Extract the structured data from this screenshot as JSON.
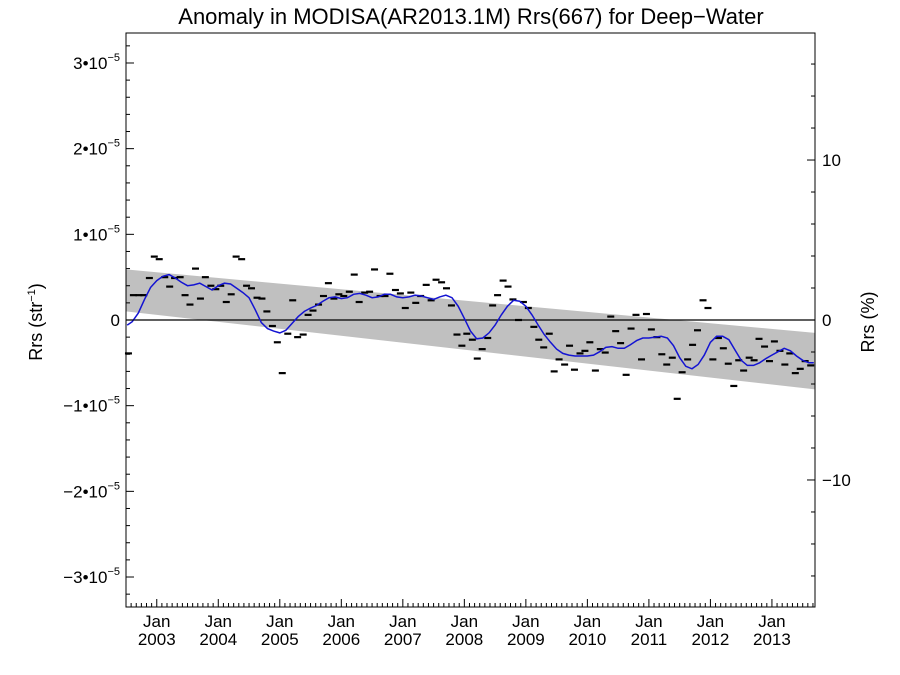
{
  "chart_data": {
    "type": "scatter",
    "title": "Anomaly in MODISA(AR2013.1M) Rrs(667) for Deep−Water",
    "ylabel_left": {
      "main": "Rrs (str",
      "sup": "−1",
      "close": ")"
    },
    "ylabel_right": "Rrs (%)",
    "xlabel": "",
    "xlim": [
      2002.5,
      2013.7
    ],
    "ylim": [
      -3.35e-05,
      3.35e-05
    ],
    "y2lim": [
      -17.94,
      17.94
    ],
    "grid": false,
    "legend": "none",
    "colors": {
      "smooth_line": "#1414d2",
      "trend_band": "#c0c0c0",
      "points": "#000000"
    },
    "left_ticks": [
      {
        "value": -3e-05,
        "mant": "−3•1",
        "pre": "0",
        "exp": "−5"
      },
      {
        "value": -2e-05,
        "mant": "−2•1",
        "pre": "0",
        "exp": "−5"
      },
      {
        "value": -1e-05,
        "mant": "−1•1",
        "pre": "0",
        "exp": "−5"
      },
      {
        "value": 0,
        "mant": "0",
        "pre": "",
        "exp": ""
      },
      {
        "value": 1e-05,
        "mant": "1•1",
        "pre": "0",
        "exp": "−5"
      },
      {
        "value": 2e-05,
        "mant": "2•1",
        "pre": "0",
        "exp": "−5"
      },
      {
        "value": 3e-05,
        "mant": "3•1",
        "pre": "0",
        "exp": "−5"
      }
    ],
    "right_ticks": [
      {
        "value": -10,
        "label": "−10"
      },
      {
        "value": 0,
        "label": "0"
      },
      {
        "value": 10,
        "label": "10"
      }
    ],
    "x_ticks": [
      {
        "value": 2003.0,
        "month": "Jan",
        "year": "2003"
      },
      {
        "value": 2004.0,
        "month": "Jan",
        "year": "2004"
      },
      {
        "value": 2005.0,
        "month": "Jan",
        "year": "2005"
      },
      {
        "value": 2006.0,
        "month": "Jan",
        "year": "2006"
      },
      {
        "value": 2007.0,
        "month": "Jan",
        "year": "2007"
      },
      {
        "value": 2008.0,
        "month": "Jan",
        "year": "2008"
      },
      {
        "value": 2009.0,
        "month": "Jan",
        "year": "2009"
      },
      {
        "value": 2010.0,
        "month": "Jan",
        "year": "2010"
      },
      {
        "value": 2011.0,
        "month": "Jan",
        "year": "2011"
      },
      {
        "value": 2012.0,
        "month": "Jan",
        "year": "2012"
      },
      {
        "value": 2013.0,
        "month": "Jan",
        "year": "2013"
      }
    ],
    "trend_band": {
      "x": [
        2002.5,
        2013.7
      ],
      "upper": [
        5.9e-06,
        -1.5e-06
      ],
      "lower": [
        1e-06,
        -8.1e-06
      ]
    },
    "zero_line": 0,
    "points": {
      "x": [
        2002.54,
        2002.62,
        2002.71,
        2002.79,
        2002.88,
        2002.96,
        2003.04,
        2003.13,
        2003.21,
        2003.29,
        2003.38,
        2003.46,
        2003.54,
        2003.63,
        2003.71,
        2003.79,
        2003.88,
        2003.96,
        2004.04,
        2004.13,
        2004.21,
        2004.29,
        2004.38,
        2004.46,
        2004.54,
        2004.63,
        2004.71,
        2004.79,
        2004.88,
        2004.96,
        2005.04,
        2005.13,
        2005.21,
        2005.29,
        2005.38,
        2005.46,
        2005.54,
        2005.63,
        2005.71,
        2005.79,
        2005.88,
        2005.96,
        2006.04,
        2006.13,
        2006.21,
        2006.29,
        2006.38,
        2006.46,
        2006.54,
        2006.63,
        2006.71,
        2006.79,
        2006.88,
        2006.96,
        2007.04,
        2007.13,
        2007.21,
        2007.29,
        2007.38,
        2007.46,
        2007.54,
        2007.63,
        2007.71,
        2007.79,
        2007.88,
        2007.96,
        2008.04,
        2008.13,
        2008.21,
        2008.29,
        2008.38,
        2008.46,
        2008.54,
        2008.63,
        2008.71,
        2008.79,
        2008.88,
        2008.96,
        2009.04,
        2009.13,
        2009.21,
        2009.29,
        2009.38,
        2009.46,
        2009.54,
        2009.63,
        2009.71,
        2009.79,
        2009.88,
        2009.96,
        2010.04,
        2010.13,
        2010.21,
        2010.29,
        2010.38,
        2010.46,
        2010.54,
        2010.63,
        2010.71,
        2010.79,
        2010.88,
        2010.96,
        2011.04,
        2011.13,
        2011.21,
        2011.29,
        2011.38,
        2011.46,
        2011.54,
        2011.63,
        2011.71,
        2011.79,
        2011.88,
        2011.96,
        2012.04,
        2012.13,
        2012.21,
        2012.29,
        2012.38,
        2012.46,
        2012.54,
        2012.63,
        2012.71,
        2012.79,
        2012.88,
        2012.96,
        2013.04,
        2013.13,
        2013.21,
        2013.29,
        2013.38,
        2013.46,
        2013.54,
        2013.63
      ],
      "y": [
        -3.9e-06,
        2.9e-06,
        2.9e-06,
        2.9e-06,
        4.9e-06,
        7.4e-06,
        7.1e-06,
        5e-06,
        3.9e-06,
        4.9e-06,
        5e-06,
        2.9e-06,
        1.8e-06,
        6e-06,
        2.5e-06,
        5e-06,
        4e-06,
        3.6e-06,
        4e-06,
        2.1e-06,
        3e-06,
        7.4e-06,
        7.1e-06,
        4e-06,
        3.7e-06,
        2.6e-06,
        2.5e-06,
        1e-06,
        -7e-07,
        -2.6e-06,
        -6.2e-06,
        -1.6e-06,
        2.3e-06,
        -2e-06,
        -1.7e-06,
        6e-07,
        1.1e-06,
        1.8e-06,
        2.8e-06,
        4.3e-06,
        2.5e-06,
        3e-06,
        2.8e-06,
        3.3e-06,
        5.3e-06,
        2.1e-06,
        3.2e-06,
        3.3e-06,
        5.9e-06,
        2.8e-06,
        2.8e-06,
        5.4e-06,
        3.5e-06,
        3.1e-06,
        1.4e-06,
        3.2e-06,
        2e-06,
        2.8e-06,
        4.1e-06,
        2.3e-06,
        4.7e-06,
        4.4e-06,
        3.7e-06,
        1.7e-06,
        -1.7e-06,
        -3e-06,
        -1.6e-06,
        -2.3e-06,
        -4.5e-06,
        -3.4e-06,
        -2.1e-06,
        1.7e-06,
        2.9e-06,
        4.6e-06,
        3.9e-06,
        2.4e-06,
        0.0,
        2.1e-06,
        1.4e-06,
        -8e-07,
        -2.3e-06,
        -3.2e-06,
        -1.6e-06,
        -6e-06,
        -4.6e-06,
        -5.2e-06,
        -3e-06,
        -5.8e-06,
        -3.9e-06,
        -3.6e-06,
        -2.6e-06,
        -5.9e-06,
        -3.4e-06,
        -3.8e-06,
        4e-07,
        -1.3e-06,
        -2.7e-06,
        -6.4e-06,
        -1e-06,
        6e-07,
        -4.6e-06,
        7e-07,
        -1.1e-06,
        -2e-06,
        -4e-06,
        -5.2e-06,
        -4.4e-06,
        -9.2e-06,
        -6.1e-06,
        -4.6e-06,
        -2.9e-06,
        -1.2e-06,
        2.3e-06,
        1.4e-06,
        -4.6e-06,
        -2.1e-06,
        -3.3e-06,
        -5.1e-06,
        -7.7e-06,
        -4.7e-06,
        -5.9e-06,
        -4.4e-06,
        -4.7e-06,
        -2.2e-06,
        -3.1e-06,
        -4.8e-06,
        -2.5e-06,
        -3.6e-06,
        -5.2e-06,
        -3.9e-06,
        -6.2e-06,
        -5.7e-06,
        -4.8e-06,
        -5.3e-06
      ]
    },
    "smooth_line": {
      "x": [
        2002.52,
        2002.6,
        2002.7,
        2002.8,
        2002.9,
        2003.0,
        2003.1,
        2003.2,
        2003.3,
        2003.4,
        2003.5,
        2003.6,
        2003.7,
        2003.8,
        2003.9,
        2004.0,
        2004.1,
        2004.2,
        2004.3,
        2004.4,
        2004.5,
        2004.6,
        2004.7,
        2004.8,
        2004.9,
        2005.0,
        2005.1,
        2005.2,
        2005.3,
        2005.4,
        2005.5,
        2005.6,
        2005.7,
        2005.8,
        2005.9,
        2006.0,
        2006.1,
        2006.2,
        2006.3,
        2006.4,
        2006.5,
        2006.6,
        2006.7,
        2006.8,
        2006.9,
        2007.0,
        2007.1,
        2007.2,
        2007.3,
        2007.4,
        2007.5,
        2007.6,
        2007.7,
        2007.8,
        2007.9,
        2008.0,
        2008.1,
        2008.2,
        2008.3,
        2008.4,
        2008.5,
        2008.6,
        2008.7,
        2008.8,
        2008.9,
        2009.0,
        2009.1,
        2009.2,
        2009.3,
        2009.4,
        2009.5,
        2009.6,
        2009.7,
        2009.8,
        2009.9,
        2010.0,
        2010.1,
        2010.2,
        2010.3,
        2010.4,
        2010.5,
        2010.6,
        2010.7,
        2010.8,
        2010.9,
        2011.0,
        2011.1,
        2011.2,
        2011.3,
        2011.4,
        2011.5,
        2011.6,
        2011.7,
        2011.8,
        2011.9,
        2012.0,
        2012.1,
        2012.2,
        2012.3,
        2012.4,
        2012.5,
        2012.6,
        2012.7,
        2012.8,
        2012.9,
        2013.0,
        2013.1,
        2013.2,
        2013.3,
        2013.4,
        2013.5,
        2013.6,
        2013.68
      ],
      "y": [
        -6e-07,
        -2e-07,
        8e-07,
        2.4e-06,
        3.8e-06,
        4.6e-06,
        5.1e-06,
        5.3e-06,
        4.9e-06,
        4.4e-06,
        4e-06,
        4.1e-06,
        4.3e-06,
        3.9e-06,
        3.5e-06,
        4e-06,
        4.3e-06,
        4.2e-06,
        3.7e-06,
        3.2e-06,
        2.6e-06,
        1.2e-06,
        -3e-07,
        -1e-06,
        -1.3e-06,
        -1.5e-06,
        -1.2e-06,
        -4e-07,
        4e-07,
        1e-06,
        1.4e-06,
        1.7e-06,
        2.2e-06,
        2.6e-06,
        2.7e-06,
        2.5e-06,
        2.6e-06,
        3e-06,
        3.1e-06,
        2.9e-06,
        2.6e-06,
        2.7e-06,
        3e-06,
        3e-06,
        2.7e-06,
        2.6e-06,
        2.7e-06,
        2.9e-06,
        2.8e-06,
        2.6e-06,
        2.4e-06,
        2.7e-06,
        2.9e-06,
        2.6e-06,
        1.6e-06,
        2e-07,
        -1.3e-06,
        -2.2e-06,
        -2.1e-06,
        -1.5e-06,
        -6e-07,
        6e-07,
        1.6e-06,
        2.3e-06,
        2.2e-06,
        1.6e-06,
        6e-07,
        -6e-07,
        -1.7e-06,
        -2.6e-06,
        -3.4e-06,
        -3.9e-06,
        -4.1e-06,
        -4.2e-06,
        -4.2e-06,
        -4.2e-06,
        -4.1e-06,
        -3.7e-06,
        -3.2e-06,
        -3.1e-06,
        -3.3e-06,
        -3.3e-06,
        -2.9e-06,
        -2.4e-06,
        -2.1e-06,
        -2.1e-06,
        -2e-06,
        -1.9e-06,
        -2.1e-06,
        -3e-06,
        -4.4e-06,
        -5.4e-06,
        -5.7e-06,
        -5.2e-06,
        -4.1e-06,
        -2.6e-06,
        -1.9e-06,
        -1.9e-06,
        -2.3e-06,
        -3.5e-06,
        -4.7e-06,
        -5.3e-06,
        -5.3e-06,
        -5e-06,
        -4.5e-06,
        -4.1e-06,
        -3.7e-06,
        -3.3e-06,
        -3.6e-06,
        -4.2e-06,
        -4.7e-06,
        -5e-06,
        -5e-06
      ]
    }
  }
}
